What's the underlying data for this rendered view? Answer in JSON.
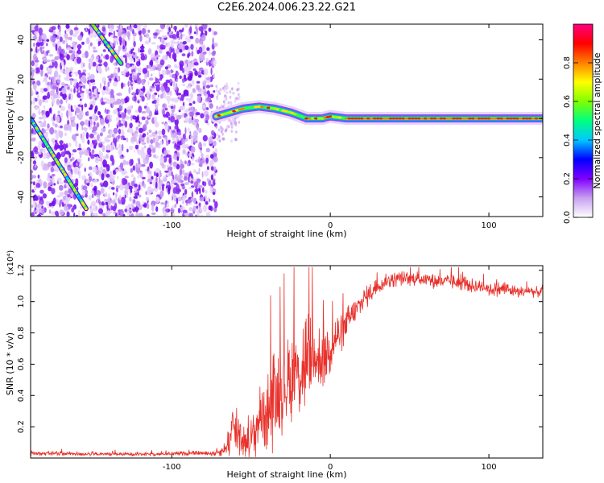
{
  "figure": {
    "title": "C2E6.2024.006.23.22.G21"
  },
  "chart_data": [
    {
      "type": "heatmap",
      "xlabel": "Height of straight line (km)",
      "ylabel": "Frequency (Hz)",
      "xlim": [
        -189,
        134
      ],
      "ylim": [
        -50,
        48
      ],
      "x_ticks": [
        -100,
        0,
        100
      ],
      "x_tick_labels": [
        "-100",
        "0",
        "100"
      ],
      "y_ticks": [
        -40,
        -20,
        0,
        20,
        40
      ],
      "y_tick_labels": [
        "-40",
        "-20",
        "0",
        "20",
        "40"
      ],
      "colorbar": {
        "label": "Normalized spectral amplitude",
        "range": [
          0,
          1
        ],
        "ticks": [
          0.0,
          0.2,
          0.4,
          0.6,
          0.8
        ],
        "tick_labels": [
          "0.0",
          "0.2",
          "0.4",
          "0.6",
          "0.8"
        ],
        "colormap": [
          "#ffffff",
          "#c8a0f0",
          "#8000ff",
          "#0000ff",
          "#00c8ff",
          "#00ff80",
          "#80ff00",
          "#ffff00",
          "#ff8000",
          "#ff0000",
          "#ff0080"
        ]
      },
      "noise_region_x": [
        -189,
        -72
      ],
      "features": [
        {
          "kind": "diagonal-line",
          "x": [
            -189,
            -154
          ],
          "y": [
            0,
            -46
          ]
        },
        {
          "kind": "diagonal-line",
          "x": [
            -150,
            -132
          ],
          "y": [
            48,
            28
          ]
        },
        {
          "kind": "ridge",
          "x": [
            -72,
            -55,
            -45,
            -35,
            -25,
            -15,
            -5,
            0,
            10,
            50,
            80,
            100,
            134
          ],
          "y": [
            1,
            5,
            6,
            5,
            3,
            0,
            0,
            1,
            0,
            0,
            0,
            0,
            0
          ]
        }
      ]
    },
    {
      "type": "line",
      "xlabel": "Height of straight line (km)",
      "ylabel": "SNR (10 * v/v)",
      "y_multiplier": "(x10⁴)",
      "xlim": [
        -189,
        134
      ],
      "ylim": [
        0,
        1.23
      ],
      "x_ticks": [
        -100,
        0,
        100
      ],
      "x_tick_labels": [
        "-100",
        "0",
        "100"
      ],
      "y_ticks": [
        0.2,
        0.4,
        0.6,
        0.8,
        1.0,
        1.2
      ],
      "y_tick_labels": [
        "0.2",
        "0.4",
        "0.6",
        "0.8",
        "1.0",
        "1.2"
      ],
      "color": "#e8302a",
      "series": [
        {
          "x": [
            -189,
            -170,
            -150,
            -130,
            -110,
            -90,
            -75,
            -70,
            -66,
            -62,
            -58,
            -55,
            -52,
            -48,
            -45,
            -42,
            -38,
            -35,
            -30,
            -25,
            -20,
            -15,
            -10,
            -5,
            0,
            5,
            10,
            15,
            20,
            25,
            30,
            35,
            40,
            45,
            50,
            55,
            60,
            65,
            70,
            75,
            80,
            85,
            90,
            95,
            100,
            105,
            110,
            115,
            120,
            125,
            130,
            134
          ],
          "y": [
            0.03,
            0.03,
            0.025,
            0.025,
            0.025,
            0.03,
            0.03,
            0.04,
            0.06,
            0.15,
            0.2,
            0.12,
            0.1,
            0.15,
            0.25,
            0.3,
            0.32,
            0.38,
            0.45,
            0.5,
            0.55,
            0.6,
            0.62,
            0.65,
            0.72,
            0.78,
            0.85,
            0.92,
            1.0,
            1.05,
            1.1,
            1.13,
            1.14,
            1.15,
            1.14,
            1.15,
            1.14,
            1.13,
            1.13,
            1.13,
            1.12,
            1.12,
            1.1,
            1.1,
            1.08,
            1.08,
            1.08,
            1.07,
            1.06,
            1.07,
            1.06,
            1.07
          ],
          "spread": [
            0.015,
            0.015,
            0.012,
            0.012,
            0.012,
            0.015,
            0.02,
            0.03,
            0.05,
            0.2,
            0.22,
            0.12,
            0.1,
            0.18,
            0.2,
            0.25,
            0.3,
            0.35,
            0.3,
            0.3,
            0.32,
            0.4,
            0.25,
            0.22,
            0.2,
            0.15,
            0.12,
            0.1,
            0.08,
            0.07,
            0.06,
            0.05,
            0.05,
            0.05,
            0.05,
            0.05,
            0.05,
            0.05,
            0.05,
            0.05,
            0.05,
            0.05,
            0.05,
            0.05,
            0.05,
            0.05,
            0.05,
            0.04,
            0.04,
            0.04,
            0.04,
            0.04
          ]
        }
      ]
    }
  ]
}
